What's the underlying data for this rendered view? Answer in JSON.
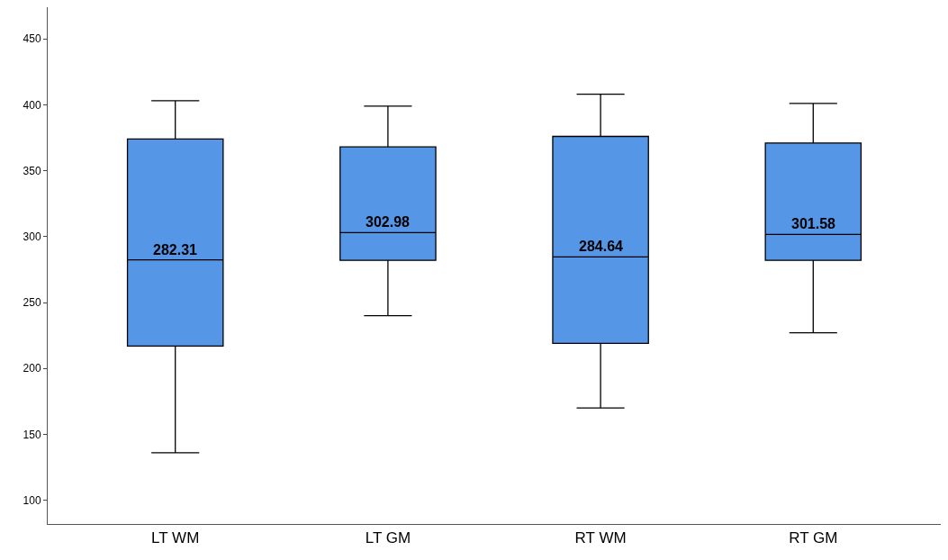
{
  "chart_data": {
    "type": "box",
    "categories": [
      "LT WM",
      "LT GM",
      "RT WM",
      "RT GM"
    ],
    "boxes": [
      {
        "low": 136,
        "q1": 217,
        "median": 282.31,
        "q3": 374,
        "high": 403
      },
      {
        "low": 240,
        "q1": 282,
        "median": 302.98,
        "q3": 368,
        "high": 399
      },
      {
        "low": 170,
        "q1": 219,
        "median": 284.64,
        "q3": 376,
        "high": 408
      },
      {
        "low": 227,
        "q1": 282,
        "median": 301.58,
        "q3": 371,
        "high": 401
      }
    ],
    "color": "#5596e6",
    "value_labels": [
      "282.31",
      "302.98",
      "284.64",
      "301.58"
    ],
    "ylim": [
      82,
      474
    ],
    "yticks": [
      100,
      150,
      200,
      250,
      300,
      350,
      400,
      450
    ]
  }
}
